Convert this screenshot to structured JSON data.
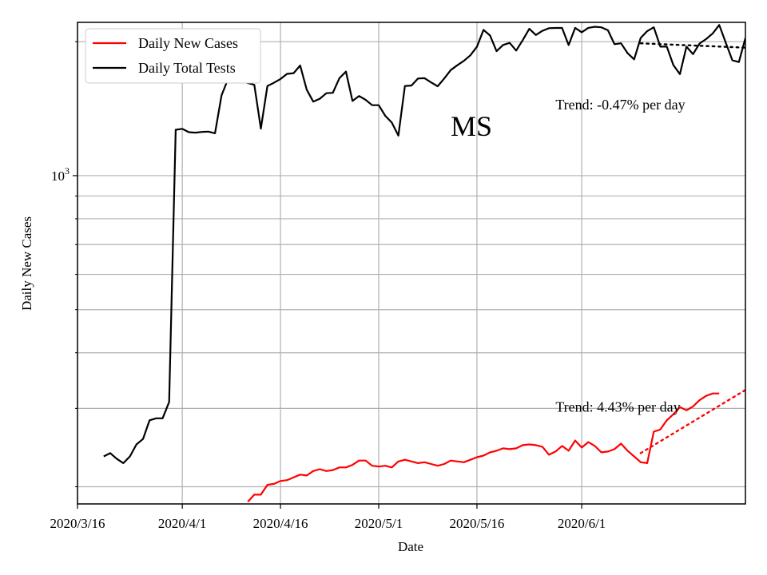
{
  "chart_data": {
    "type": "line",
    "title": "",
    "state_label": "MS",
    "xlabel": "Date",
    "ylabel": "Daily New Cases",
    "y_scale": "log",
    "ylim": [
      183,
      2210
    ],
    "xlim": [
      "2020-03-16",
      "2020-06-26"
    ],
    "grid": true,
    "legend_position": "top-left",
    "x_ticks": [
      {
        "date": "2020-03-16",
        "label": "2020/3/16"
      },
      {
        "date": "2020-04-01",
        "label": "2020/4/1"
      },
      {
        "date": "2020-04-16",
        "label": "2020/4/16"
      },
      {
        "date": "2020-05-01",
        "label": "2020/5/1"
      },
      {
        "date": "2020-05-16",
        "label": "2020/5/16"
      },
      {
        "date": "2020-06-01",
        "label": "2020/6/1"
      }
    ],
    "y_major_ticks": [
      {
        "value": 1000,
        "label_base": "10",
        "label_exp": "3"
      }
    ],
    "y_minor_ticks": [
      200,
      300,
      400,
      500,
      600,
      700,
      800,
      900,
      2000
    ],
    "series": [
      {
        "name": "Daily New Cases",
        "color": "#ff0000",
        "points": [
          [
            "2020-04-11",
            185
          ],
          [
            "2020-04-12",
            192
          ],
          [
            "2020-04-13",
            192
          ],
          [
            "2020-04-14",
            202
          ],
          [
            "2020-04-15",
            203
          ],
          [
            "2020-04-16",
            206
          ],
          [
            "2020-04-17",
            207
          ],
          [
            "2020-04-18",
            210
          ],
          [
            "2020-04-19",
            213
          ],
          [
            "2020-04-20",
            212
          ],
          [
            "2020-04-21",
            217
          ],
          [
            "2020-04-22",
            219
          ],
          [
            "2020-04-23",
            217
          ],
          [
            "2020-04-24",
            218
          ],
          [
            "2020-04-25",
            221
          ],
          [
            "2020-04-26",
            221
          ],
          [
            "2020-04-27",
            224
          ],
          [
            "2020-04-28",
            229
          ],
          [
            "2020-04-29",
            229
          ],
          [
            "2020-04-30",
            223
          ],
          [
            "2020-05-01",
            222
          ],
          [
            "2020-05-02",
            223
          ],
          [
            "2020-05-03",
            221
          ],
          [
            "2020-05-04",
            228
          ],
          [
            "2020-05-05",
            230
          ],
          [
            "2020-05-06",
            228
          ],
          [
            "2020-05-07",
            226
          ],
          [
            "2020-05-08",
            227
          ],
          [
            "2020-05-09",
            225
          ],
          [
            "2020-05-10",
            223
          ],
          [
            "2020-05-11",
            225
          ],
          [
            "2020-05-12",
            229
          ],
          [
            "2020-05-13",
            228
          ],
          [
            "2020-05-14",
            227
          ],
          [
            "2020-05-15",
            230
          ],
          [
            "2020-05-16",
            233
          ],
          [
            "2020-05-17",
            235
          ],
          [
            "2020-05-18",
            239
          ],
          [
            "2020-05-19",
            241
          ],
          [
            "2020-05-20",
            244
          ],
          [
            "2020-05-21",
            243
          ],
          [
            "2020-05-22",
            244
          ],
          [
            "2020-05-23",
            248
          ],
          [
            "2020-05-24",
            249
          ],
          [
            "2020-05-25",
            248
          ],
          [
            "2020-05-26",
            246
          ],
          [
            "2020-05-27",
            236
          ],
          [
            "2020-05-28",
            240
          ],
          [
            "2020-05-29",
            247
          ],
          [
            "2020-05-30",
            241
          ],
          [
            "2020-05-31",
            254
          ],
          [
            "2020-06-01",
            245
          ],
          [
            "2020-06-02",
            252
          ],
          [
            "2020-06-03",
            247
          ],
          [
            "2020-06-04",
            239
          ],
          [
            "2020-06-05",
            240
          ],
          [
            "2020-06-06",
            243
          ],
          [
            "2020-06-07",
            250
          ],
          [
            "2020-06-08",
            241
          ],
          [
            "2020-06-09",
            234
          ],
          [
            "2020-06-10",
            227
          ],
          [
            "2020-06-11",
            226
          ],
          [
            "2020-06-12",
            266
          ],
          [
            "2020-06-13",
            269
          ],
          [
            "2020-06-14",
            282
          ],
          [
            "2020-06-15",
            291
          ],
          [
            "2020-06-16",
            302
          ],
          [
            "2020-06-17",
            297
          ],
          [
            "2020-06-18",
            303
          ],
          [
            "2020-06-19",
            313
          ],
          [
            "2020-06-20",
            320
          ],
          [
            "2020-06-21",
            324
          ],
          [
            "2020-06-22",
            324
          ]
        ]
      },
      {
        "name": "Daily Total Tests",
        "color": "#000000",
        "points": [
          [
            "2020-03-20",
            234
          ],
          [
            "2020-03-21",
            238
          ],
          [
            "2020-03-22",
            231
          ],
          [
            "2020-03-23",
            226
          ],
          [
            "2020-03-24",
            234
          ],
          [
            "2020-03-25",
            249
          ],
          [
            "2020-03-26",
            256
          ],
          [
            "2020-03-27",
            282
          ],
          [
            "2020-03-28",
            285
          ],
          [
            "2020-03-29",
            285
          ],
          [
            "2020-03-30",
            310
          ],
          [
            "2020-03-31",
            1268
          ],
          [
            "2020-04-01",
            1274
          ],
          [
            "2020-04-02",
            1252
          ],
          [
            "2020-04-03",
            1249
          ],
          [
            "2020-04-04",
            1254
          ],
          [
            "2020-04-05",
            1256
          ],
          [
            "2020-04-06",
            1245
          ],
          [
            "2020-04-07",
            1515
          ],
          [
            "2020-04-08",
            1649
          ],
          [
            "2020-04-09",
            1627
          ],
          [
            "2020-04-10",
            1629
          ],
          [
            "2020-04-11",
            1615
          ],
          [
            "2020-04-12",
            1600
          ],
          [
            "2020-04-13",
            1275
          ],
          [
            "2020-04-14",
            1590
          ],
          [
            "2020-04-15",
            1617
          ],
          [
            "2020-04-16",
            1649
          ],
          [
            "2020-04-17",
            1693
          ],
          [
            "2020-04-18",
            1699
          ],
          [
            "2020-04-19",
            1768
          ],
          [
            "2020-04-20",
            1560
          ],
          [
            "2020-04-21",
            1466
          ],
          [
            "2020-04-22",
            1489
          ],
          [
            "2020-04-23",
            1532
          ],
          [
            "2020-04-24",
            1535
          ],
          [
            "2020-04-25",
            1656
          ],
          [
            "2020-04-26",
            1713
          ],
          [
            "2020-04-27",
            1472
          ],
          [
            "2020-04-28",
            1510
          ],
          [
            "2020-04-29",
            1480
          ],
          [
            "2020-04-30",
            1440
          ],
          [
            "2020-05-01",
            1440
          ],
          [
            "2020-05-02",
            1363
          ],
          [
            "2020-05-03",
            1316
          ],
          [
            "2020-05-04",
            1230
          ],
          [
            "2020-05-05",
            1590
          ],
          [
            "2020-05-06",
            1594
          ],
          [
            "2020-05-07",
            1653
          ],
          [
            "2020-05-08",
            1656
          ],
          [
            "2020-05-09",
            1620
          ],
          [
            "2020-05-10",
            1588
          ],
          [
            "2020-05-11",
            1653
          ],
          [
            "2020-05-12",
            1727
          ],
          [
            "2020-05-13",
            1770
          ],
          [
            "2020-05-14",
            1811
          ],
          [
            "2020-05-15",
            1864
          ],
          [
            "2020-05-16",
            1949
          ],
          [
            "2020-05-17",
            2126
          ],
          [
            "2020-05-18",
            2064
          ],
          [
            "2020-05-19",
            1904
          ],
          [
            "2020-05-20",
            1966
          ],
          [
            "2020-05-21",
            1987
          ],
          [
            "2020-05-22",
            1910
          ],
          [
            "2020-05-23",
            2016
          ],
          [
            "2020-05-24",
            2137
          ],
          [
            "2020-05-25",
            2070
          ],
          [
            "2020-05-26",
            2115
          ],
          [
            "2020-05-27",
            2144
          ],
          [
            "2020-05-28",
            2147
          ],
          [
            "2020-05-29",
            2147
          ],
          [
            "2020-05-30",
            1965
          ],
          [
            "2020-05-31",
            2148
          ],
          [
            "2020-06-01",
            2100
          ],
          [
            "2020-06-02",
            2148
          ],
          [
            "2020-06-03",
            2160
          ],
          [
            "2020-06-04",
            2154
          ],
          [
            "2020-06-05",
            2121
          ],
          [
            "2020-06-06",
            1974
          ],
          [
            "2020-06-07",
            1983
          ],
          [
            "2020-06-08",
            1884
          ],
          [
            "2020-06-09",
            1825
          ],
          [
            "2020-06-10",
            2039
          ],
          [
            "2020-06-11",
            2113
          ],
          [
            "2020-06-12",
            2154
          ],
          [
            "2020-06-13",
            1949
          ],
          [
            "2020-06-14",
            1949
          ],
          [
            "2020-06-15",
            1772
          ],
          [
            "2020-06-16",
            1691
          ],
          [
            "2020-06-17",
            1949
          ],
          [
            "2020-06-18",
            1875
          ],
          [
            "2020-06-19",
            1981
          ],
          [
            "2020-06-20",
            2027
          ],
          [
            "2020-06-21",
            2087
          ],
          [
            "2020-06-22",
            2180
          ],
          [
            "2020-06-23",
            1989
          ],
          [
            "2020-06-24",
            1817
          ],
          [
            "2020-06-25",
            1800
          ],
          [
            "2020-06-26",
            2039
          ]
        ]
      }
    ],
    "trend_lines": [
      {
        "series": "Daily Total Tests",
        "style": "dotted",
        "color": "#000000",
        "points": [
          [
            "2020-06-10",
            1983
          ],
          [
            "2020-06-26",
            1939
          ]
        ]
      },
      {
        "series": "Daily New Cases",
        "style": "dotted",
        "color": "#ff0000",
        "points": [
          [
            "2020-06-10",
            238
          ],
          [
            "2020-06-26",
            330
          ]
        ]
      }
    ],
    "annotations": [
      {
        "text": "Trend: -0.47% per day",
        "anchor": [
          "2020-05-28",
          1410
        ]
      },
      {
        "text": "Trend: 4.43% per day",
        "anchor": [
          "2020-05-28",
          295
        ]
      }
    ]
  }
}
